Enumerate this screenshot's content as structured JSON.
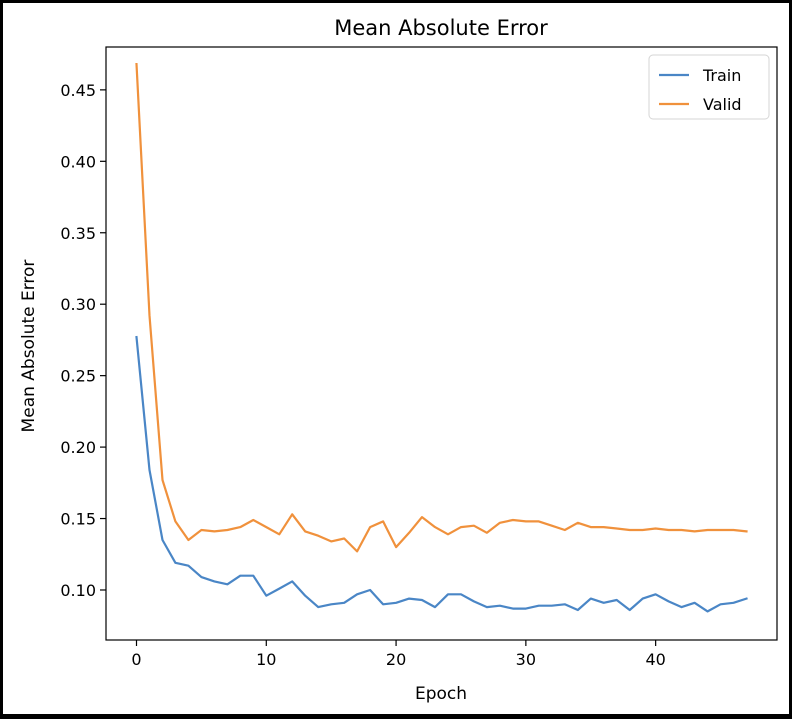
{
  "chart_data": {
    "type": "line",
    "title": "Mean Absolute Error",
    "xlabel": "Epoch",
    "ylabel": "Mean Absolute Error",
    "xlim": [
      -2.35,
      49.35
    ],
    "ylim": [
      0.065,
      0.48
    ],
    "xticks": [
      0,
      10,
      20,
      30,
      40
    ],
    "yticks": [
      0.1,
      0.15,
      0.2,
      0.25,
      0.3,
      0.35,
      0.4,
      0.45
    ],
    "ytick_labels": [
      "0.10",
      "0.15",
      "0.20",
      "0.25",
      "0.30",
      "0.35",
      "0.40",
      "0.45"
    ],
    "xtick_labels": [
      "0",
      "10",
      "20",
      "30",
      "40"
    ],
    "grid": false,
    "legend_position": "top-right",
    "series": [
      {
        "name": "Train",
        "color": "#4a86c6",
        "x": [
          0,
          1,
          2,
          3,
          4,
          5,
          6,
          7,
          8,
          9,
          10,
          11,
          12,
          13,
          14,
          15,
          16,
          17,
          18,
          19,
          20,
          21,
          22,
          23,
          24,
          25,
          26,
          27,
          28,
          29,
          30,
          31,
          32,
          33,
          34,
          35,
          36,
          37,
          38,
          39,
          40,
          41,
          42,
          43,
          44,
          45,
          46,
          47
        ],
        "values": [
          0.277,
          0.184,
          0.135,
          0.119,
          0.117,
          0.109,
          0.106,
          0.104,
          0.11,
          0.11,
          0.096,
          0.101,
          0.106,
          0.096,
          0.088,
          0.09,
          0.091,
          0.097,
          0.1,
          0.09,
          0.091,
          0.094,
          0.093,
          0.088,
          0.097,
          0.097,
          0.092,
          0.088,
          0.089,
          0.087,
          0.087,
          0.089,
          0.089,
          0.09,
          0.086,
          0.094,
          0.091,
          0.093,
          0.086,
          0.094,
          0.097,
          0.092,
          0.088,
          0.091,
          0.085,
          0.09,
          0.091,
          0.094
        ]
      },
      {
        "name": "Valid",
        "color": "#f0913c",
        "x": [
          0,
          1,
          2,
          3,
          4,
          5,
          6,
          7,
          8,
          9,
          10,
          11,
          12,
          13,
          14,
          15,
          16,
          17,
          18,
          19,
          20,
          21,
          22,
          23,
          24,
          25,
          26,
          27,
          28,
          29,
          30,
          31,
          32,
          33,
          34,
          35,
          36,
          37,
          38,
          39,
          40,
          41,
          42,
          43,
          44,
          45,
          46,
          47
        ],
        "values": [
          0.468,
          0.292,
          0.177,
          0.148,
          0.135,
          0.142,
          0.141,
          0.142,
          0.144,
          0.149,
          0.144,
          0.139,
          0.153,
          0.141,
          0.138,
          0.134,
          0.136,
          0.127,
          0.144,
          0.148,
          0.13,
          0.14,
          0.151,
          0.144,
          0.139,
          0.144,
          0.145,
          0.14,
          0.147,
          0.149,
          0.148,
          0.148,
          0.145,
          0.142,
          0.147,
          0.144,
          0.144,
          0.143,
          0.142,
          0.142,
          0.143,
          0.142,
          0.142,
          0.141,
          0.142,
          0.142,
          0.142,
          0.141
        ]
      }
    ]
  }
}
